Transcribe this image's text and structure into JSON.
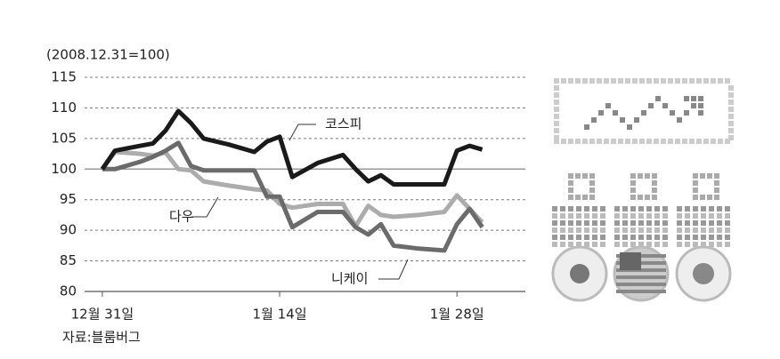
{
  "chart_data": {
    "type": "line",
    "subtitle": "(2008.12.31=100)",
    "source": "자료:블룸버그",
    "x": [
      0,
      1,
      3,
      4,
      5,
      6,
      7,
      8,
      10,
      12,
      13,
      14,
      15,
      17,
      19,
      20,
      21,
      22,
      23,
      25,
      27,
      28,
      29,
      30
    ],
    "xlim": [
      -1.4,
      33.4
    ],
    "xticks": [
      {
        "value": 0,
        "label": "12월 31일"
      },
      {
        "value": 14,
        "label": "1월 14일"
      },
      {
        "value": 28,
        "label": "1월 28일"
      }
    ],
    "ylim": [
      80,
      115
    ],
    "yticks": [
      80,
      85,
      90,
      95,
      100,
      105,
      110,
      115
    ],
    "grid": true,
    "series": [
      {
        "name": "코스피",
        "color": "#1a1a1a",
        "values": [
          100,
          103,
          103.8,
          104.2,
          106.3,
          109.5,
          107.5,
          105,
          104,
          102.8,
          104.5,
          105.3,
          98.7,
          101,
          102.3,
          100,
          98,
          99,
          97.5,
          97.5,
          97.5,
          103,
          103.8,
          103.2
        ]
      },
      {
        "name": "다우",
        "color": "#acacac",
        "values": [
          100,
          102.8,
          102.5,
          102.2,
          102.7,
          100,
          99.8,
          98,
          97.3,
          96.7,
          96.5,
          94.3,
          93.7,
          94.3,
          94.3,
          90.7,
          94,
          92.5,
          92.2,
          92.5,
          93,
          95.7,
          93.5,
          91.3
        ]
      },
      {
        "name": "니케이",
        "color": "#6b6b6b",
        "values": [
          100,
          100,
          101.2,
          102,
          103,
          104.3,
          100.5,
          99.8,
          99.8,
          99.8,
          95.5,
          95.5,
          90.5,
          93,
          93,
          90.5,
          89.3,
          91,
          87.5,
          87,
          86.7,
          91,
          93.5,
          90.5
        ]
      }
    ]
  }
}
